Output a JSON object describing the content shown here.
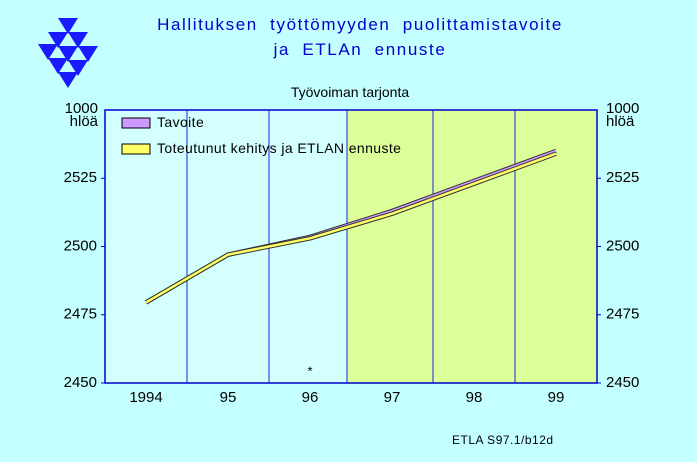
{
  "chart_data": {
    "type": "line",
    "title": "Hallituksen työttömyyden puolittamistavoite\nja ETLAn ennuste",
    "subtitle": "Työvoiman tarjonta",
    "y_label": "1000\nhlöä",
    "y2_label": "1000\nhlöä",
    "source": "ETLA S97.1/b12d",
    "annotation": "*",
    "categories": [
      "1994",
      "95",
      "96",
      "97",
      "98",
      "99"
    ],
    "series": [
      {
        "name": "Tavoite",
        "color": "#cc99ff",
        "values": [
          2479.5,
          2497,
          2503.5,
          2513,
          2524,
          2535
        ]
      },
      {
        "name": "Toteutunut kehitys\nja ETLAN ennuste",
        "color": "#ffff66",
        "values": [
          2479.5,
          2497,
          2503,
          2512,
          2523,
          2534
        ]
      }
    ],
    "ylim": [
      2450,
      2550
    ],
    "yticks": [
      2450,
      2475,
      2500,
      2525
    ],
    "grid": true
  }
}
